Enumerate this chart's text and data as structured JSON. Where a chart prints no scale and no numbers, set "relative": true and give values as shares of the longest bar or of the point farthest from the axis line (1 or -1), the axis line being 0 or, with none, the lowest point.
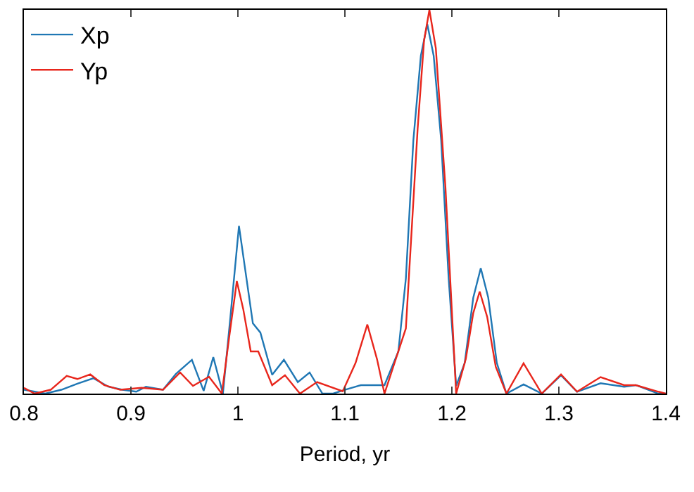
{
  "chart_data": {
    "type": "line",
    "xlabel": "Period, yr",
    "relative": true,
    "xlim": [
      0.8,
      1.4
    ],
    "xticks": [
      0.8,
      0.9,
      1,
      1.1,
      1.2,
      1.3,
      1.4
    ],
    "legend": "top left",
    "marker": "none",
    "line_style": "solid",
    "series": [
      {
        "name": "Xp",
        "color": "#1f77b4",
        "x": [
          0.8,
          0.82,
          0.835,
          0.85,
          0.865,
          0.879,
          0.892,
          0.905,
          0.914,
          0.93,
          0.942,
          0.957,
          0.968,
          0.977,
          0.986,
          0.993,
          1.001,
          1.008,
          1.014,
          1.021,
          1.032,
          1.043,
          1.056,
          1.067,
          1.079,
          1.089,
          1.1,
          1.115,
          1.137,
          1.15,
          1.157,
          1.164,
          1.171,
          1.177,
          1.183,
          1.19,
          1.197,
          1.204,
          1.212,
          1.22,
          1.227,
          1.234,
          1.242,
          1.251,
          1.267,
          1.284,
          1.302,
          1.317,
          1.339,
          1.361,
          1.372,
          1.393,
          1.4
        ],
        "values": [
          0.01,
          0.0,
          0.01,
          0.026,
          0.04,
          0.018,
          0.01,
          0.005,
          0.018,
          0.01,
          0.051,
          0.088,
          0.007,
          0.095,
          0.0,
          0.2,
          0.437,
          0.3,
          0.183,
          0.159,
          0.049,
          0.088,
          0.03,
          0.055,
          0.0,
          0.0,
          0.01,
          0.022,
          0.022,
          0.11,
          0.3,
          0.66,
          0.88,
          0.963,
          0.88,
          0.66,
          0.3,
          0.02,
          0.08,
          0.25,
          0.327,
          0.25,
          0.08,
          0.0,
          0.024,
          0.0,
          0.048,
          0.005,
          0.027,
          0.018,
          0.022,
          0.0,
          0.0
        ]
      },
      {
        "name": "Yp",
        "color": "#e8261c",
        "x": [
          0.8,
          0.81,
          0.825,
          0.84,
          0.85,
          0.862,
          0.875,
          0.89,
          0.91,
          0.93,
          0.946,
          0.958,
          0.973,
          0.985,
          0.992,
          0.999,
          1.005,
          1.012,
          1.019,
          1.032,
          1.044,
          1.058,
          1.074,
          1.098,
          1.11,
          1.121,
          1.13,
          1.137,
          1.157,
          1.168,
          1.174,
          1.179,
          1.185,
          1.194,
          1.204,
          1.213,
          1.22,
          1.226,
          1.233,
          1.241,
          1.251,
          1.267,
          1.284,
          1.302,
          1.317,
          1.339,
          1.361,
          1.372,
          1.393,
          1.4
        ],
        "values": [
          0.015,
          0.0,
          0.01,
          0.046,
          0.038,
          0.05,
          0.022,
          0.01,
          0.015,
          0.01,
          0.055,
          0.02,
          0.044,
          0.0,
          0.15,
          0.293,
          0.22,
          0.11,
          0.11,
          0.022,
          0.048,
          0.0,
          0.03,
          0.006,
          0.08,
          0.18,
          0.09,
          0.0,
          0.17,
          0.69,
          0.92,
          1.0,
          0.9,
          0.537,
          0.0,
          0.09,
          0.21,
          0.266,
          0.2,
          0.07,
          0.0,
          0.079,
          0.0,
          0.05,
          0.005,
          0.043,
          0.022,
          0.022,
          0.005,
          0.0
        ]
      }
    ]
  }
}
